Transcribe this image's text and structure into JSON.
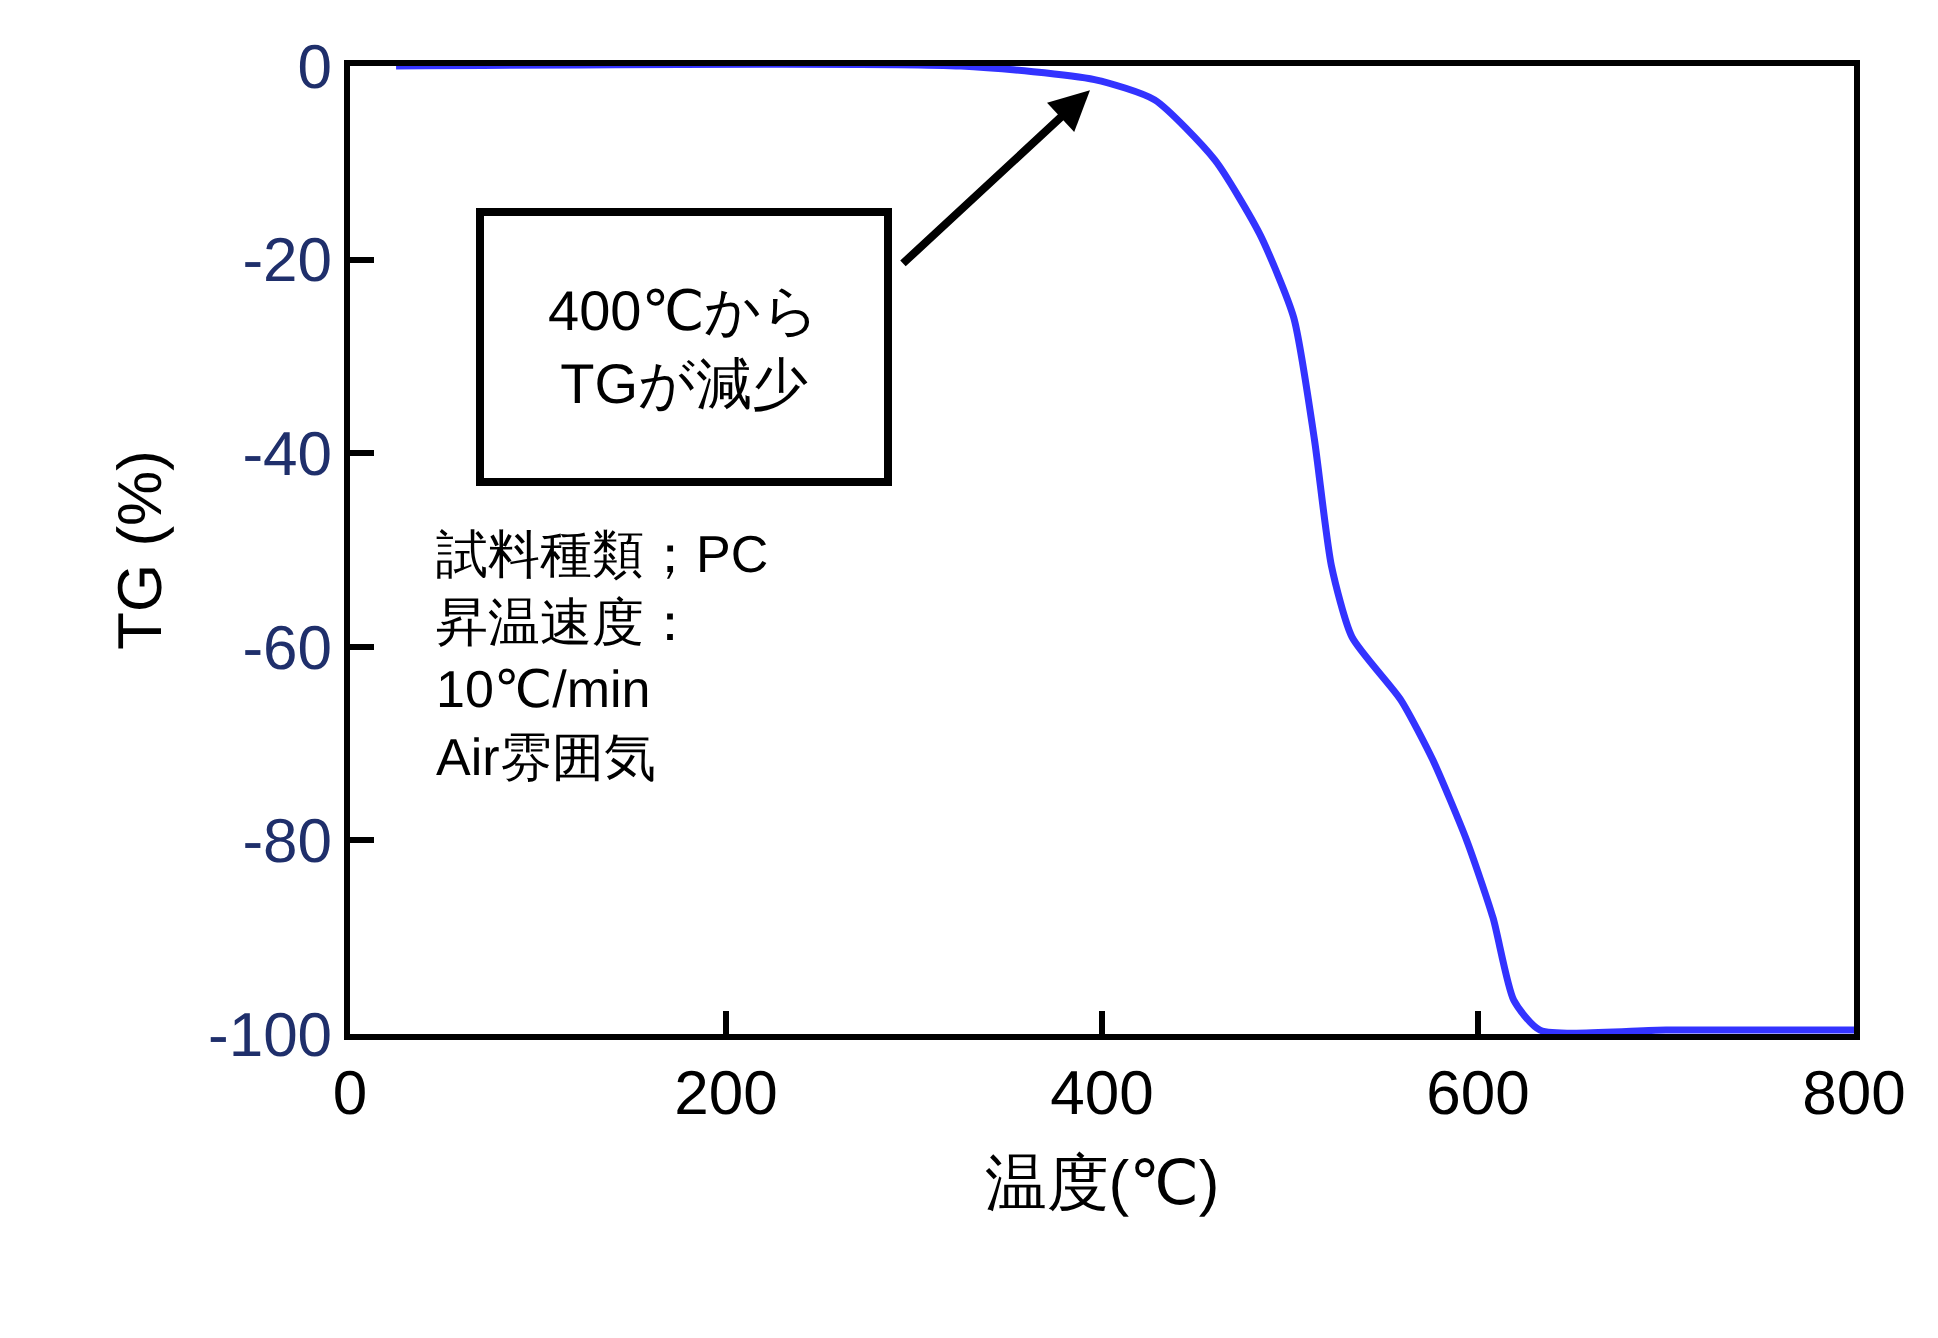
{
  "chart_data": {
    "type": "line",
    "xlabel": "温度(℃)",
    "ylabel": "TG (%)",
    "x": [
      24.5,
      325,
      396,
      428,
      460,
      484,
      502,
      513,
      522,
      533,
      559,
      576,
      594,
      608,
      619,
      633,
      700,
      800
    ],
    "series": [
      {
        "color": "#3333ff",
        "values": [
          0,
          0,
          -1.4,
          -3.5,
          -9.7,
          -17.4,
          -26,
          -38.6,
          -51.6,
          -59,
          -65.5,
          -71.7,
          -80,
          -88,
          -96.5,
          -99.6,
          -99.6,
          -99.6
        ]
      }
    ],
    "xlim": [
      0,
      800
    ],
    "xticks": [
      0,
      200,
      400,
      600,
      800
    ],
    "ylim": [
      -100,
      0
    ],
    "yticks": [
      0,
      -20,
      -40,
      -60,
      -80,
      -100
    ],
    "grid": false,
    "marker": "none",
    "line_style": "solid",
    "annotations": [
      "400℃から\nTGが減少",
      "試料種類；PC\n昇温速度：\n10℃/min\nAir雰囲気"
    ]
  }
}
